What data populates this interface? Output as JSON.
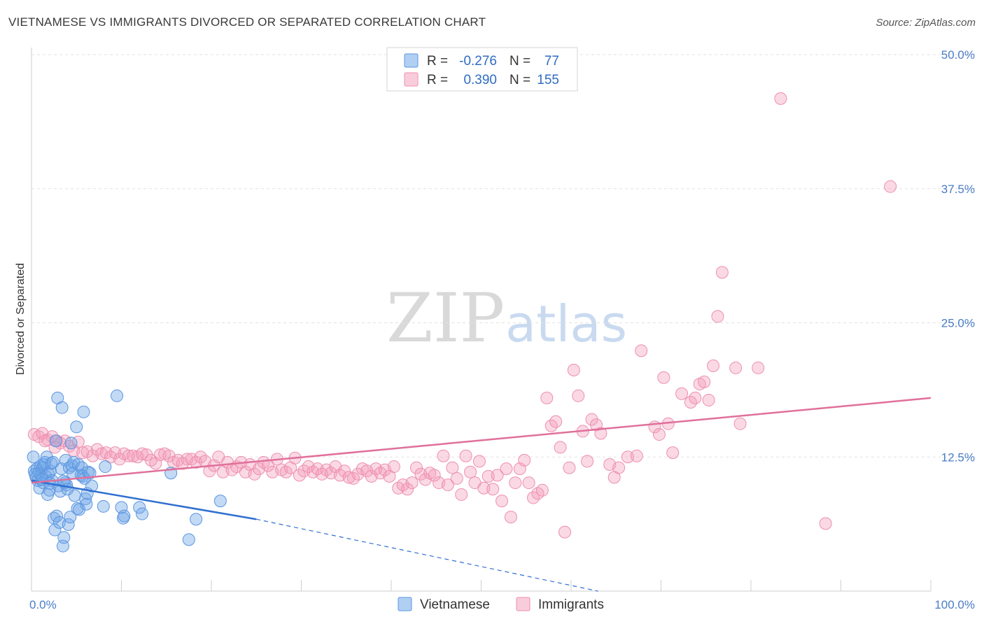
{
  "title": "VIETNAMESE VS IMMIGRANTS DIVORCED OR SEPARATED CORRELATION CHART",
  "source": "Source: ZipAtlas.com",
  "watermark": {
    "zip": "ZIP",
    "atlas": "atlas"
  },
  "chart_data": {
    "type": "scatter",
    "xlabel": "",
    "ylabel": "Divorced or Separated",
    "xlim": [
      0,
      100
    ],
    "ylim": [
      0,
      50
    ],
    "x_tick_labels": [
      "0.0%",
      "100.0%"
    ],
    "y_ticks": [
      12.5,
      25.0,
      37.5,
      50.0
    ],
    "y_tick_labels": [
      "12.5%",
      "25.0%",
      "37.5%",
      "50.0%"
    ],
    "grid": true,
    "legend_position": "top-center",
    "legend": {
      "r_label": "R =",
      "n_label": "N =",
      "entries": [
        {
          "r": "-0.276",
          "n": "77"
        },
        {
          "r": "0.390",
          "n": "155"
        }
      ]
    },
    "series": [
      {
        "name": "Vietnamese",
        "color": "#6fa8e8",
        "line_color": "#2f6fd0",
        "trend": {
          "x0": 0,
          "y0": 10.3,
          "x1": 25,
          "y1": 6.7,
          "dash_to_x": 63,
          "dash_to_y": 0
        },
        "points": [
          [
            0.2,
            12.5
          ],
          [
            0.3,
            11.2
          ],
          [
            0.5,
            10.6
          ],
          [
            0.6,
            11.4
          ],
          [
            0.7,
            10.3
          ],
          [
            0.8,
            11.0
          ],
          [
            0.9,
            9.6
          ],
          [
            1.0,
            11.6
          ],
          [
            1.1,
            10.8
          ],
          [
            1.2,
            11.5
          ],
          [
            1.3,
            10.1
          ],
          [
            1.4,
            11.8
          ],
          [
            1.5,
            12.0
          ],
          [
            1.6,
            10.7
          ],
          [
            1.7,
            12.5
          ],
          [
            1.8,
            9.0
          ],
          [
            1.9,
            10.9
          ],
          [
            2.0,
            9.4
          ],
          [
            2.1,
            11.2
          ],
          [
            2.2,
            11.9
          ],
          [
            2.3,
            10.3
          ],
          [
            2.4,
            12.0
          ],
          [
            2.5,
            6.8
          ],
          [
            2.6,
            5.7
          ],
          [
            2.7,
            14.0
          ],
          [
            2.8,
            7.0
          ],
          [
            2.9,
            18.0
          ],
          [
            3.0,
            9.8
          ],
          [
            3.1,
            6.4
          ],
          [
            3.2,
            9.3
          ],
          [
            3.3,
            11.4
          ],
          [
            3.4,
            17.1
          ],
          [
            3.5,
            4.2
          ],
          [
            3.6,
            5.0
          ],
          [
            3.7,
            10.1
          ],
          [
            3.8,
            12.2
          ],
          [
            3.9,
            9.9
          ],
          [
            4.0,
            9.5
          ],
          [
            4.1,
            6.2
          ],
          [
            4.2,
            11.5
          ],
          [
            4.3,
            6.9
          ],
          [
            4.4,
            13.8
          ],
          [
            4.5,
            11.7
          ],
          [
            4.6,
            11.0
          ],
          [
            4.7,
            12.0
          ],
          [
            4.8,
            8.9
          ],
          [
            5.0,
            15.3
          ],
          [
            5.1,
            7.7
          ],
          [
            5.2,
            11.8
          ],
          [
            5.3,
            7.6
          ],
          [
            5.5,
            10.8
          ],
          [
            5.6,
            11.5
          ],
          [
            5.7,
            10.7
          ],
          [
            5.8,
            16.7
          ],
          [
            5.9,
            10.5
          ],
          [
            6.0,
            8.6
          ],
          [
            6.1,
            8.1
          ],
          [
            6.2,
            9.1
          ],
          [
            6.3,
            11.1
          ],
          [
            6.5,
            11.0
          ],
          [
            6.7,
            9.8
          ],
          [
            8.0,
            7.9
          ],
          [
            8.2,
            11.6
          ],
          [
            9.5,
            18.2
          ],
          [
            10.0,
            7.8
          ],
          [
            10.2,
            6.8
          ],
          [
            10.3,
            7.0
          ],
          [
            12.0,
            7.8
          ],
          [
            12.3,
            7.2
          ],
          [
            15.5,
            11.0
          ],
          [
            17.5,
            4.8
          ],
          [
            18.3,
            6.7
          ],
          [
            21.0,
            8.4
          ],
          [
            0.4,
            10.9
          ],
          [
            1.15,
            10.4
          ],
          [
            2.05,
            10.05
          ],
          [
            3.55,
            10.25
          ]
        ]
      },
      {
        "name": "Immigrants",
        "color": "#f49ab8",
        "line_color": "#e0709a",
        "trend": {
          "x0": 0,
          "y0": 10.1,
          "x1": 100,
          "y1": 18.0
        },
        "points": [
          [
            0.3,
            14.6
          ],
          [
            0.8,
            14.4
          ],
          [
            1.2,
            14.7
          ],
          [
            1.8,
            14.1
          ],
          [
            2.3,
            14.4
          ],
          [
            2.8,
            14.0
          ],
          [
            3.2,
            13.8
          ],
          [
            3.7,
            14.0
          ],
          [
            4.2,
            13.5
          ],
          [
            4.7,
            13.1
          ],
          [
            5.2,
            13.9
          ],
          [
            5.7,
            12.9
          ],
          [
            6.2,
            13.0
          ],
          [
            6.8,
            12.6
          ],
          [
            7.3,
            13.2
          ],
          [
            7.8,
            12.8
          ],
          [
            8.3,
            12.9
          ],
          [
            8.8,
            12.5
          ],
          [
            9.3,
            12.9
          ],
          [
            9.8,
            12.3
          ],
          [
            10.3,
            12.8
          ],
          [
            10.8,
            12.6
          ],
          [
            11.3,
            12.6
          ],
          [
            11.8,
            12.5
          ],
          [
            12.3,
            12.8
          ],
          [
            12.8,
            12.7
          ],
          [
            13.3,
            12.2
          ],
          [
            13.8,
            11.9
          ],
          [
            14.3,
            12.7
          ],
          [
            14.8,
            12.8
          ],
          [
            15.3,
            12.6
          ],
          [
            15.8,
            12.0
          ],
          [
            16.3,
            12.2
          ],
          [
            16.8,
            11.9
          ],
          [
            17.3,
            12.3
          ],
          [
            17.8,
            12.3
          ],
          [
            18.3,
            12.0
          ],
          [
            18.8,
            12.5
          ],
          [
            19.3,
            12.1
          ],
          [
            19.8,
            11.2
          ],
          [
            20.3,
            11.7
          ],
          [
            20.8,
            12.5
          ],
          [
            21.3,
            11.1
          ],
          [
            21.8,
            12.0
          ],
          [
            22.3,
            11.3
          ],
          [
            22.8,
            11.6
          ],
          [
            23.3,
            12.0
          ],
          [
            23.8,
            11.1
          ],
          [
            24.3,
            11.8
          ],
          [
            24.8,
            10.9
          ],
          [
            25.3,
            11.4
          ],
          [
            25.8,
            12.0
          ],
          [
            26.3,
            11.7
          ],
          [
            26.8,
            11.1
          ],
          [
            27.3,
            12.3
          ],
          [
            27.8,
            11.3
          ],
          [
            28.3,
            11.1
          ],
          [
            28.8,
            11.5
          ],
          [
            29.3,
            12.4
          ],
          [
            29.8,
            10.8
          ],
          [
            30.3,
            11.2
          ],
          [
            30.8,
            11.6
          ],
          [
            31.3,
            11.1
          ],
          [
            31.8,
            11.4
          ],
          [
            32.3,
            10.9
          ],
          [
            32.8,
            11.3
          ],
          [
            33.3,
            11.0
          ],
          [
            33.8,
            11.6
          ],
          [
            34.3,
            10.8
          ],
          [
            34.8,
            11.2
          ],
          [
            35.3,
            10.6
          ],
          [
            35.8,
            10.5
          ],
          [
            36.3,
            10.9
          ],
          [
            36.8,
            11.4
          ],
          [
            37.3,
            11.2
          ],
          [
            37.8,
            10.7
          ],
          [
            38.3,
            11.4
          ],
          [
            38.8,
            11.0
          ],
          [
            39.3,
            11.3
          ],
          [
            39.8,
            10.7
          ],
          [
            40.3,
            11.6
          ],
          [
            40.8,
            9.6
          ],
          [
            41.3,
            9.9
          ],
          [
            41.8,
            9.5
          ],
          [
            42.3,
            10.1
          ],
          [
            42.8,
            11.5
          ],
          [
            43.3,
            10.9
          ],
          [
            43.8,
            10.4
          ],
          [
            44.3,
            11.0
          ],
          [
            44.8,
            10.8
          ],
          [
            45.3,
            10.1
          ],
          [
            45.8,
            12.6
          ],
          [
            46.3,
            9.9
          ],
          [
            46.8,
            11.5
          ],
          [
            47.3,
            10.5
          ],
          [
            47.8,
            9.0
          ],
          [
            48.3,
            12.6
          ],
          [
            48.8,
            11.1
          ],
          [
            49.3,
            10.1
          ],
          [
            49.8,
            12.1
          ],
          [
            50.3,
            9.6
          ],
          [
            50.8,
            10.7
          ],
          [
            51.3,
            9.5
          ],
          [
            51.8,
            10.8
          ],
          [
            52.3,
            8.4
          ],
          [
            52.8,
            11.4
          ],
          [
            53.3,
            6.9
          ],
          [
            53.8,
            10.1
          ],
          [
            54.3,
            11.4
          ],
          [
            54.8,
            12.2
          ],
          [
            55.3,
            10.1
          ],
          [
            55.8,
            8.7
          ],
          [
            56.3,
            9.1
          ],
          [
            56.8,
            9.4
          ],
          [
            57.3,
            18.0
          ],
          [
            57.8,
            15.4
          ],
          [
            58.3,
            15.8
          ],
          [
            58.8,
            13.4
          ],
          [
            59.3,
            5.5
          ],
          [
            59.8,
            11.5
          ],
          [
            60.3,
            20.6
          ],
          [
            60.8,
            18.2
          ],
          [
            61.3,
            14.9
          ],
          [
            61.8,
            12.1
          ],
          [
            62.3,
            16.0
          ],
          [
            62.8,
            15.5
          ],
          [
            63.3,
            14.7
          ],
          [
            64.3,
            11.8
          ],
          [
            64.8,
            10.6
          ],
          [
            65.3,
            11.5
          ],
          [
            66.3,
            12.5
          ],
          [
            67.3,
            12.6
          ],
          [
            67.8,
            22.4
          ],
          [
            69.3,
            15.3
          ],
          [
            69.8,
            14.6
          ],
          [
            70.3,
            19.9
          ],
          [
            70.8,
            15.6
          ],
          [
            71.3,
            12.9
          ],
          [
            72.3,
            18.4
          ],
          [
            73.3,
            17.6
          ],
          [
            73.8,
            18.0
          ],
          [
            74.3,
            19.3
          ],
          [
            74.8,
            19.5
          ],
          [
            75.3,
            17.8
          ],
          [
            75.8,
            21.0
          ],
          [
            76.3,
            25.6
          ],
          [
            76.8,
            29.7
          ],
          [
            78.8,
            15.6
          ],
          [
            78.3,
            20.8
          ],
          [
            80.8,
            20.8
          ],
          [
            83.3,
            45.9
          ],
          [
            88.3,
            6.3
          ],
          [
            95.5,
            37.7
          ],
          [
            1.5,
            14.0
          ],
          [
            2.6,
            13.4
          ]
        ]
      }
    ]
  }
}
